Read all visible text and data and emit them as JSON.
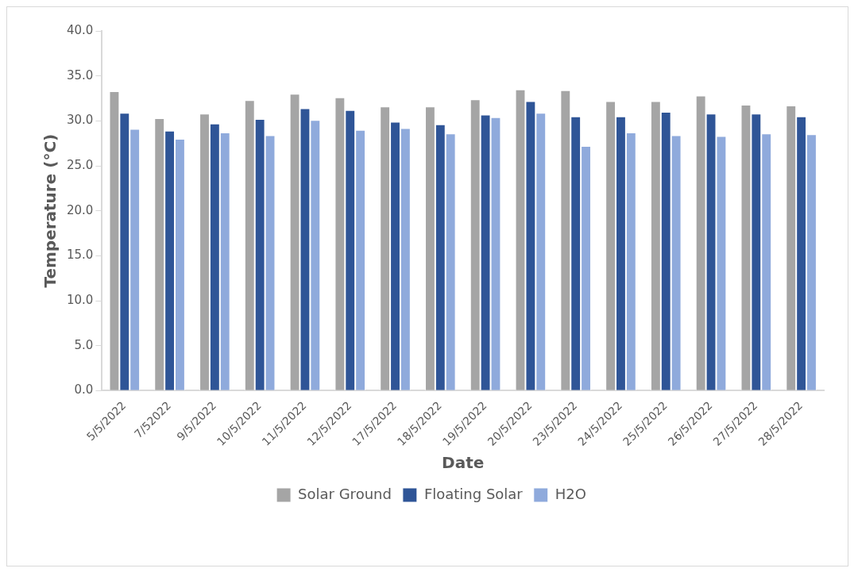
{
  "chart_data": {
    "type": "bar",
    "xlabel": "Date",
    "ylabel": "Temperature (°C)",
    "categories": [
      "5/5/2022",
      "7/52022",
      "9/5/2022",
      "10/5/2022",
      "11/5/2022",
      "12/5/2022",
      "17/5/2022",
      "18/5/2022",
      "19/5/2022",
      "20/5/2022",
      "23/5/2022",
      "24/5/2022",
      "25/5/2022",
      "26/5/2022",
      "27/5/2022",
      "28/5/2022"
    ],
    "series": [
      {
        "name": "Solar Ground",
        "color": "#a5a5a5",
        "values": [
          33.3,
          30.3,
          30.8,
          32.3,
          33.0,
          32.6,
          31.6,
          31.6,
          32.4,
          33.5,
          33.4,
          32.2,
          32.2,
          32.8,
          31.8,
          31.7
        ]
      },
      {
        "name": "Floating Solar",
        "color": "#2f5597",
        "values": [
          30.9,
          28.9,
          29.7,
          30.2,
          31.4,
          31.2,
          29.9,
          29.6,
          30.7,
          32.2,
          30.5,
          30.5,
          31.0,
          30.8,
          30.8,
          30.5
        ]
      },
      {
        "name": "H2O",
        "color": "#8faadc",
        "values": [
          29.1,
          28.0,
          28.7,
          28.4,
          30.1,
          29.0,
          29.2,
          28.6,
          30.4,
          30.9,
          27.2,
          28.7,
          28.4,
          28.3,
          28.6,
          28.5
        ]
      }
    ],
    "ylim": [
      0,
      40
    ],
    "yticks": [
      {
        "value": 0,
        "label": "0.0"
      },
      {
        "value": 5,
        "label": "5.0"
      },
      {
        "value": 10,
        "label": "10.0"
      },
      {
        "value": 15,
        "label": "15.0"
      },
      {
        "value": 20,
        "label": "20.0"
      },
      {
        "value": 25,
        "label": "25.0"
      },
      {
        "value": 30,
        "label": "30.0"
      },
      {
        "value": 35,
        "label": "35.0"
      },
      {
        "value": 40,
        "label": "40.0"
      }
    ],
    "grid": false,
    "legend": "bottom"
  }
}
